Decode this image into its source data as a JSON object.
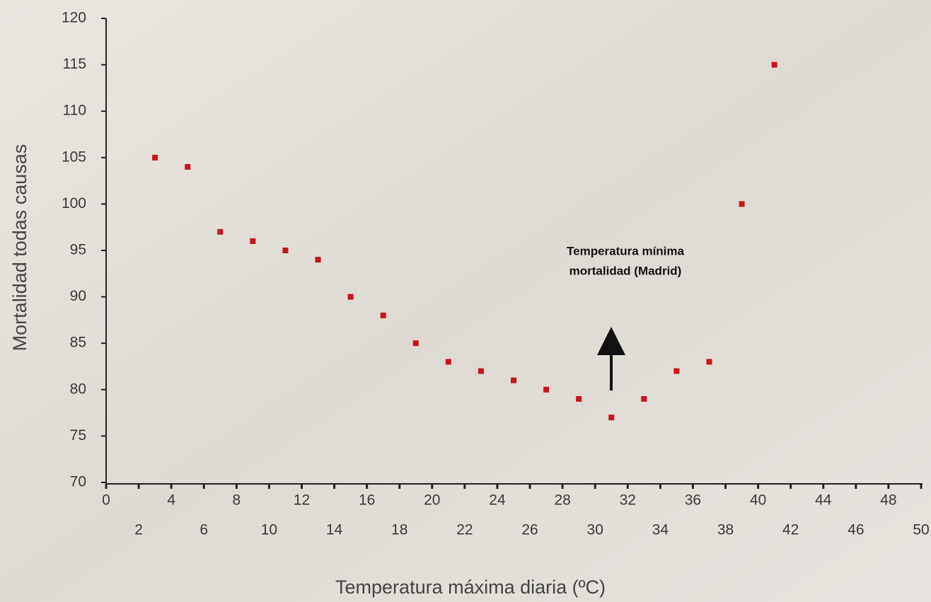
{
  "chart_data": {
    "type": "scatter",
    "x_label": "Temperatura máxima diaria (ºC)",
    "y_label": "Mortalidad todas causas",
    "annotation": [
      "Temperatura mínima",
      "mortalidad (Madrid)"
    ],
    "x": [
      3,
      5,
      7,
      9,
      11,
      13,
      15,
      17,
      19,
      21,
      23,
      25,
      27,
      29,
      31,
      33,
      35,
      37,
      39,
      41
    ],
    "values": [
      105,
      104,
      97,
      96,
      95,
      94,
      90,
      88,
      85,
      83,
      82,
      81,
      80,
      79,
      77,
      79,
      82,
      83,
      100,
      115
    ],
    "color": "#c8141c",
    "xlim": [
      0,
      50
    ],
    "xticks": [
      0,
      2,
      4,
      6,
      8,
      10,
      12,
      14,
      16,
      18,
      20,
      22,
      24,
      26,
      28,
      30,
      32,
      34,
      36,
      38,
      40,
      42,
      44,
      46,
      48,
      50
    ],
    "ylim": [
      70,
      120
    ],
    "yticks": [
      70,
      75,
      80,
      85,
      90,
      95,
      100,
      105,
      110,
      115,
      120
    ]
  }
}
